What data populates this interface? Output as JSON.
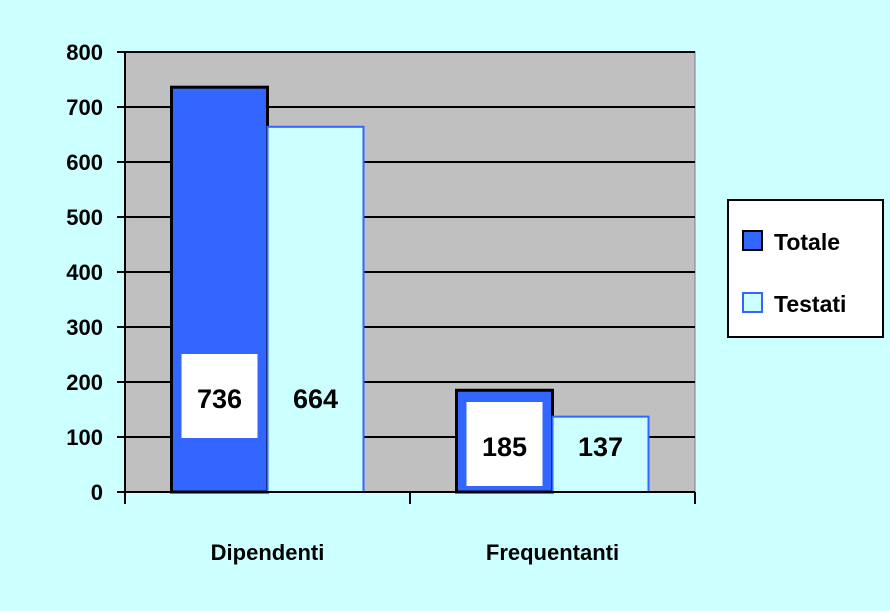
{
  "chart_data": {
    "type": "bar",
    "categories": [
      "Dipendenti",
      "Frequentanti"
    ],
    "series": [
      {
        "name": "Totale",
        "values": [
          736,
          185
        ],
        "color": "#3366ff"
      },
      {
        "name": "Testati",
        "values": [
          664,
          137
        ],
        "color": "#ccffff"
      }
    ],
    "ylim": [
      0,
      800
    ],
    "yticks": [
      "0",
      "100",
      "200",
      "300",
      "400",
      "500",
      "600",
      "700",
      "800"
    ],
    "grid": true,
    "legend_position": "right",
    "data_labels": [
      [
        "736",
        "664"
      ],
      [
        "185",
        "137"
      ]
    ],
    "colors": {
      "background": "#ccffff",
      "plot_area": "#c0c0c0",
      "totale": "#3366ff",
      "testati": "#ccffff",
      "testati_border": "#3366ff"
    }
  }
}
